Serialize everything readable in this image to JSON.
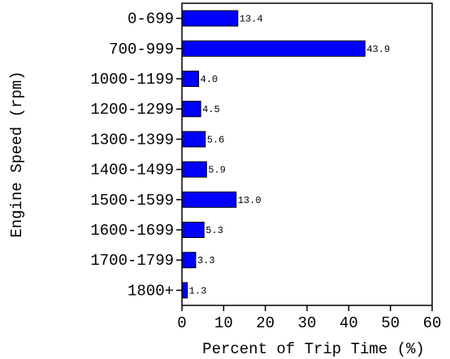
{
  "chart_data": {
    "type": "bar",
    "orientation": "horizontal",
    "categories": [
      "0-699",
      "700-999",
      "1000-1199",
      "1200-1299",
      "1300-1399",
      "1400-1499",
      "1500-1599",
      "1600-1699",
      "1700-1799",
      "1800+"
    ],
    "values": [
      13.4,
      43.9,
      4.0,
      4.5,
      5.6,
      5.9,
      13.0,
      5.3,
      3.3,
      1.3
    ],
    "value_labels": [
      "13.4",
      "43.9",
      "4.0",
      "4.5",
      "5.6",
      "5.9",
      "13.0",
      "5.3",
      "3.3",
      "1.3"
    ],
    "xlabel": "Percent of Trip Time (%)",
    "ylabel": "Engine Speed (rpm)",
    "xlim": [
      0,
      60
    ],
    "xticks": [
      0,
      10,
      20,
      30,
      40,
      50,
      60
    ],
    "xtick_labels": [
      "0",
      "10",
      "20",
      "30",
      "40",
      "50",
      "60"
    ],
    "grid": false,
    "legend": "none",
    "bar_color": "#0000ff"
  }
}
